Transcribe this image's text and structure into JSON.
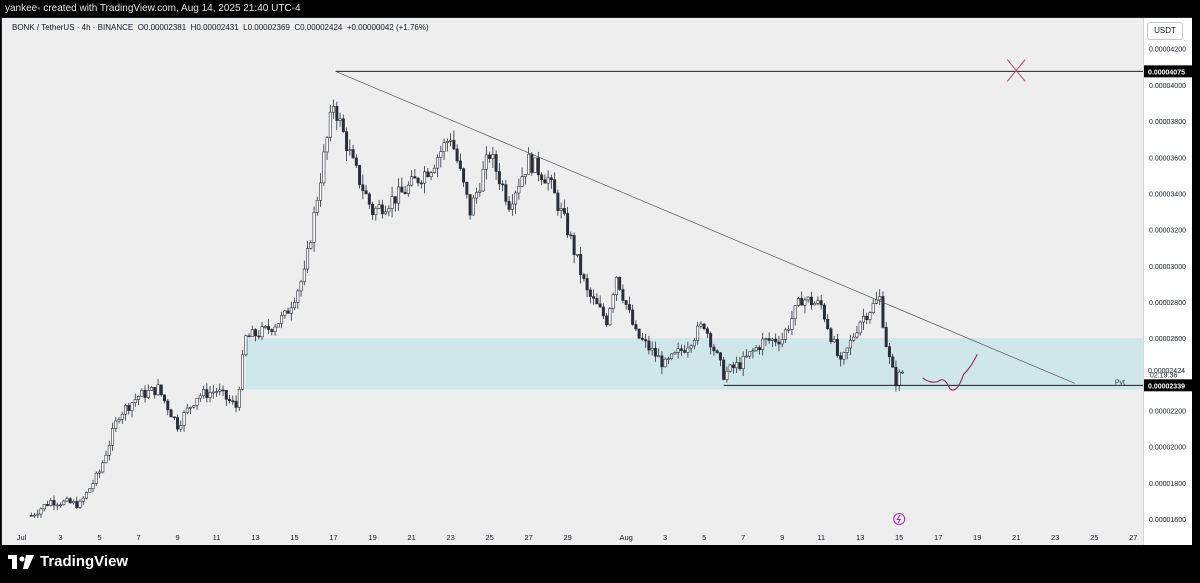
{
  "header": {
    "credit": "yankee- created with TradingView.com, Aug 14, 2025 21:40 UTC-4"
  },
  "legend": {
    "symbol": "BONK / TetherUS · 4h · BINANCE",
    "open": "O0.00002381",
    "high": "H0.00002431",
    "low": "L0.00002369",
    "close": "C0.00002424",
    "change": "+0.00000042 (+1.76%)"
  },
  "currency_badge": "USDT",
  "footer": {
    "brand": "TradingView"
  },
  "colors": {
    "background": "#eeeeee",
    "candle": "#2a2e39",
    "zone": "#cfe6ea",
    "line": "#000000",
    "x_mark": "#b8484f",
    "projection": "#8e2a58",
    "alert_icon": "#9c27b0"
  },
  "chart_data": {
    "type": "candlestick",
    "title": "",
    "interval": "4h",
    "xlabel": "",
    "ylabel": "",
    "xlim_days": [
      -1,
      57.5
    ],
    "ylim": [
      1.55e-05,
      4.37e-05
    ],
    "x_day_origin": "Jul 1, 2025",
    "tick_labels_y": [
      "0.00001600",
      "0.00001800",
      "0.00002000",
      "0.00002200",
      "0.00002600",
      "0.00002800",
      "0.00003000",
      "0.00003200",
      "0.00003400",
      "0.00003600",
      "0.00003800",
      "0.00004000",
      "0.00004200"
    ],
    "y_ticks": [
      1.6e-05,
      1.8e-05,
      2e-05,
      2.2e-05,
      2.6e-05,
      2.8e-05,
      3e-05,
      3.2e-05,
      3.4e-05,
      3.6e-05,
      3.8e-05,
      4e-05,
      4.2e-05
    ],
    "x_ticks": [
      {
        "day": 0,
        "label": "Jul"
      },
      {
        "day": 2,
        "label": "3"
      },
      {
        "day": 4,
        "label": "5"
      },
      {
        "day": 6,
        "label": "7"
      },
      {
        "day": 8,
        "label": "9"
      },
      {
        "day": 10,
        "label": "11"
      },
      {
        "day": 12,
        "label": "13"
      },
      {
        "day": 14,
        "label": "15"
      },
      {
        "day": 16,
        "label": "17"
      },
      {
        "day": 18,
        "label": "19"
      },
      {
        "day": 20,
        "label": "21"
      },
      {
        "day": 22,
        "label": "23"
      },
      {
        "day": 24,
        "label": "25"
      },
      {
        "day": 26,
        "label": "27"
      },
      {
        "day": 28,
        "label": "29"
      },
      {
        "day": 31,
        "label": "Aug"
      },
      {
        "day": 33,
        "label": "3"
      },
      {
        "day": 35,
        "label": "5"
      },
      {
        "day": 37,
        "label": "7"
      },
      {
        "day": 39,
        "label": "9"
      },
      {
        "day": 41,
        "label": "11"
      },
      {
        "day": 43,
        "label": "13"
      },
      {
        "day": 45,
        "label": "15"
      },
      {
        "day": 47,
        "label": "17"
      },
      {
        "day": 49,
        "label": "19"
      },
      {
        "day": 51,
        "label": "21"
      },
      {
        "day": 53,
        "label": "23"
      },
      {
        "day": 55,
        "label": "25"
      },
      {
        "day": 57,
        "label": "27"
      }
    ],
    "price_path": [
      {
        "day": 0.5,
        "close": 1.62e-05
      },
      {
        "day": 1.5,
        "close": 1.7e-05
      },
      {
        "day": 3.0,
        "close": 1.68e-05
      },
      {
        "day": 4.0,
        "close": 1.86e-05
      },
      {
        "day": 5.0,
        "close": 2.18e-05
      },
      {
        "day": 6.0,
        "close": 2.28e-05
      },
      {
        "day": 7.0,
        "close": 2.32e-05
      },
      {
        "day": 8.0,
        "close": 2.12e-05
      },
      {
        "day": 9.0,
        "close": 2.28e-05
      },
      {
        "day": 10.0,
        "close": 2.31e-05
      },
      {
        "day": 11.0,
        "close": 2.22e-05
      },
      {
        "day": 11.5,
        "close": 2.6e-05
      },
      {
        "day": 12.5,
        "close": 2.64e-05
      },
      {
        "day": 13.5,
        "close": 2.72e-05
      },
      {
        "day": 14.5,
        "close": 2.95e-05
      },
      {
        "day": 15.5,
        "close": 3.6e-05
      },
      {
        "day": 16.0,
        "close": 3.9e-05
      },
      {
        "day": 17.0,
        "close": 3.56e-05
      },
      {
        "day": 18.0,
        "close": 3.3e-05
      },
      {
        "day": 19.5,
        "close": 3.4e-05
      },
      {
        "day": 21.0,
        "close": 3.55e-05
      },
      {
        "day": 22.0,
        "close": 3.72e-05
      },
      {
        "day": 23.0,
        "close": 3.3e-05
      },
      {
        "day": 24.0,
        "close": 3.62e-05
      },
      {
        "day": 25.0,
        "close": 3.35e-05
      },
      {
        "day": 26.0,
        "close": 3.58e-05
      },
      {
        "day": 27.0,
        "close": 3.48e-05
      },
      {
        "day": 28.0,
        "close": 3.2e-05
      },
      {
        "day": 29.0,
        "close": 2.85e-05
      },
      {
        "day": 30.0,
        "close": 2.7e-05
      },
      {
        "day": 30.5,
        "close": 2.95e-05
      },
      {
        "day": 31.5,
        "close": 2.62e-05
      },
      {
        "day": 33.0,
        "close": 2.45e-05
      },
      {
        "day": 34.0,
        "close": 2.55e-05
      },
      {
        "day": 35.0,
        "close": 2.68e-05
      },
      {
        "day": 36.0,
        "close": 2.4e-05
      },
      {
        "day": 37.0,
        "close": 2.47e-05
      },
      {
        "day": 38.0,
        "close": 2.58e-05
      },
      {
        "day": 39.0,
        "close": 2.6e-05
      },
      {
        "day": 40.0,
        "close": 2.82e-05
      },
      {
        "day": 41.0,
        "close": 2.78e-05
      },
      {
        "day": 42.0,
        "close": 2.45e-05
      },
      {
        "day": 43.0,
        "close": 2.7e-05
      },
      {
        "day": 44.0,
        "close": 2.82e-05
      },
      {
        "day": 44.4,
        "close": 2.52e-05
      },
      {
        "day": 44.8,
        "close": 2.36e-05
      },
      {
        "day": 45.2,
        "close": 2.42e-05
      }
    ],
    "zone": {
      "y_low": 2.315e-05,
      "y_high": 2.6e-05,
      "x_start": 11.5,
      "x_end": 57.5
    },
    "resistance_line": {
      "price": 4.075e-05,
      "x_start": 16.1,
      "x_end": 57.5
    },
    "trendline": {
      "x1": 16.1,
      "y1": 4.075e-05,
      "x2": 54.0,
      "y2": 2.35e-05
    },
    "support_line": {
      "price": 2.339e-05,
      "x_start": 36.0,
      "x_end": 57.5,
      "label": "Pvt"
    },
    "projection": [
      {
        "day": 46.2,
        "y": 2.38e-05
      },
      {
        "day": 47.0,
        "y": 2.36e-05
      },
      {
        "day": 47.6,
        "y": 2.32e-05
      },
      {
        "day": 48.3,
        "y": 2.4e-05
      },
      {
        "day": 49.0,
        "y": 2.51e-05
      }
    ],
    "x_mark": {
      "day": 51.0,
      "y": 4.08e-05
    },
    "alert_marker": {
      "day": 45.0
    },
    "price_labels": [
      {
        "value": 4.075e-05,
        "text": "0.00004075",
        "highlight": true
      },
      {
        "value": 2.424e-05,
        "text": "0.00002424",
        "highlight": false
      },
      {
        "value": 2.339e-05,
        "text": "0.00002339",
        "highlight": true
      }
    ],
    "countdown": "02:19:36"
  }
}
